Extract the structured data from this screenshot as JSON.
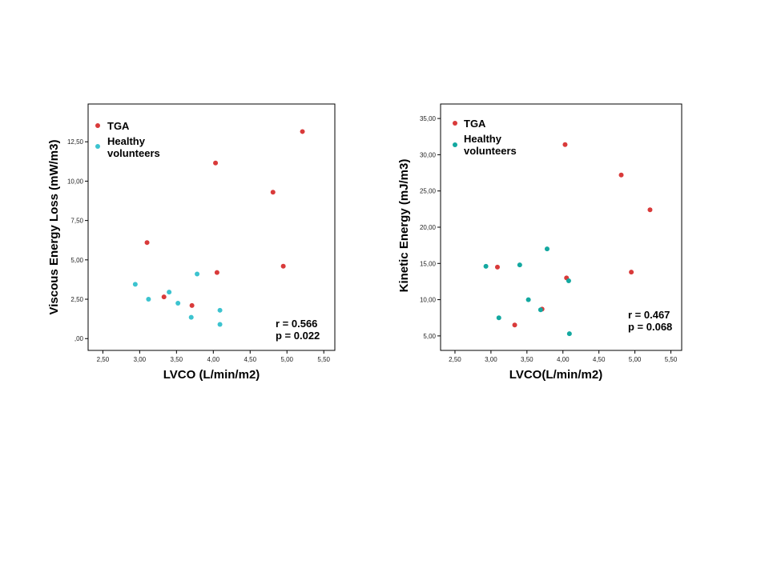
{
  "chart_data": [
    {
      "type": "scatter",
      "xlabel": "LVCO (L/min/m2)",
      "ylabel": "Viscous Energy Loss (mW/m3)",
      "xlim": [
        2.3,
        5.65
      ],
      "ylim": [
        -0.75,
        14.9
      ],
      "x_ticks": [
        2.5,
        3.0,
        3.5,
        4.0,
        4.5,
        5.0,
        5.5
      ],
      "x_tick_labels": [
        "2,50",
        "3,00",
        "3,50",
        "4,00",
        "4,50",
        "5,00",
        "5,50"
      ],
      "y_ticks": [
        0,
        2.5,
        5.0,
        7.5,
        10.0,
        12.5
      ],
      "y_tick_labels": [
        ",00",
        "2,50",
        "5,00",
        "7,50",
        "10,00",
        "12,50"
      ],
      "legend_position": "top-left",
      "series": [
        {
          "name": "TGA",
          "color": "#d93a3a",
          "points": [
            [
              3.1,
              6.1
            ],
            [
              3.33,
              2.65
            ],
            [
              3.71,
              2.1
            ],
            [
              4.03,
              11.15
            ],
            [
              4.05,
              4.2
            ],
            [
              4.81,
              9.3
            ],
            [
              4.95,
              4.6
            ],
            [
              5.21,
              13.15
            ]
          ]
        },
        {
          "name": "Healthy volunteers",
          "color": "#3cc3cf",
          "points": [
            [
              2.94,
              3.45
            ],
            [
              3.12,
              2.5
            ],
            [
              3.4,
              2.95
            ],
            [
              3.52,
              2.25
            ],
            [
              3.7,
              1.35
            ],
            [
              3.78,
              4.1
            ],
            [
              4.09,
              1.8
            ],
            [
              4.09,
              0.9
            ]
          ]
        }
      ],
      "annotation": [
        "r = 0.566",
        "p = 0.022"
      ]
    },
    {
      "type": "scatter",
      "xlabel": "LVCO(L/min/m2)",
      "ylabel": "Kinetic Energy (mJ/m3)",
      "xlim": [
        2.3,
        5.65
      ],
      "ylim": [
        3.0,
        37.0
      ],
      "x_ticks": [
        2.5,
        3.0,
        3.5,
        4.0,
        4.5,
        5.0,
        5.5
      ],
      "x_tick_labels": [
        "2,50",
        "3,00",
        "3,50",
        "4,00",
        "4,50",
        "5,00",
        "5,50"
      ],
      "y_ticks": [
        5,
        10,
        15,
        20,
        25,
        30,
        35
      ],
      "y_tick_labels": [
        "5,00",
        "10,00",
        "15,00",
        "20,00",
        "25,00",
        "30,00",
        "35,00"
      ],
      "legend_position": "top-left",
      "series": [
        {
          "name": "TGA",
          "color": "#d93a3a",
          "points": [
            [
              3.09,
              14.5
            ],
            [
              3.33,
              6.5
            ],
            [
              3.71,
              8.7
            ],
            [
              4.03,
              31.4
            ],
            [
              4.05,
              13.0
            ],
            [
              4.81,
              27.2
            ],
            [
              4.95,
              13.8
            ],
            [
              5.21,
              22.4
            ]
          ]
        },
        {
          "name": "Healthy volunteers",
          "color": "#13a8a0",
          "points": [
            [
              2.93,
              14.6
            ],
            [
              3.11,
              7.5
            ],
            [
              3.4,
              14.8
            ],
            [
              3.52,
              10.0
            ],
            [
              3.69,
              8.6
            ],
            [
              3.78,
              17.0
            ],
            [
              4.08,
              12.6
            ],
            [
              4.09,
              5.3
            ]
          ]
        }
      ],
      "annotation": [
        "r = 0.467",
        "p = 0.068"
      ]
    }
  ]
}
